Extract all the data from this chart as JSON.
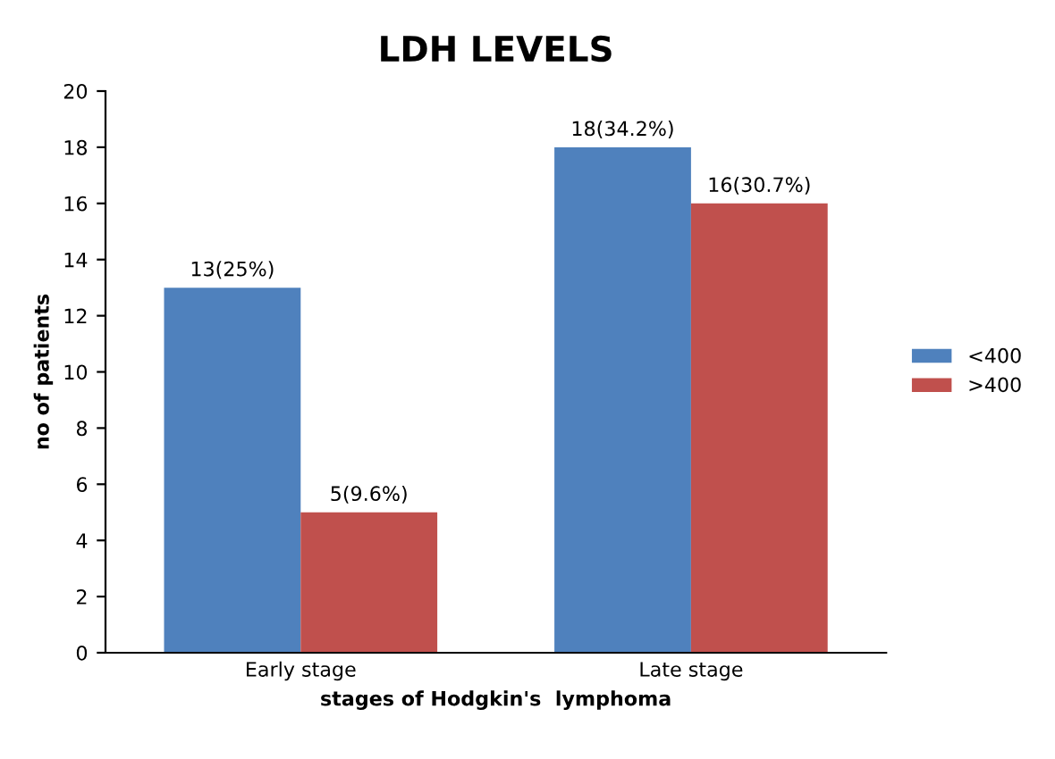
{
  "chart_data": {
    "type": "bar",
    "title": "LDH LEVELS",
    "xlabel": "stages of Hodgkin's  lymphoma",
    "ylabel": "no of patients",
    "categories": [
      "Early stage",
      "Late stage"
    ],
    "series": [
      {
        "name": "<400",
        "color": "#4f81bd",
        "values": [
          13,
          18
        ],
        "value_labels": [
          "13(25%)",
          "18(34.2%)"
        ]
      },
      {
        "name": ">400",
        "color": "#c0504d",
        "values": [
          5,
          16
        ],
        "value_labels": [
          "5(9.6%)",
          "16(30.7%)"
        ]
      }
    ],
    "ylim": [
      0,
      20
    ],
    "yticks": [
      0,
      2,
      4,
      6,
      8,
      10,
      12,
      14,
      16,
      18,
      20
    ],
    "grid": false,
    "legend": "right"
  }
}
